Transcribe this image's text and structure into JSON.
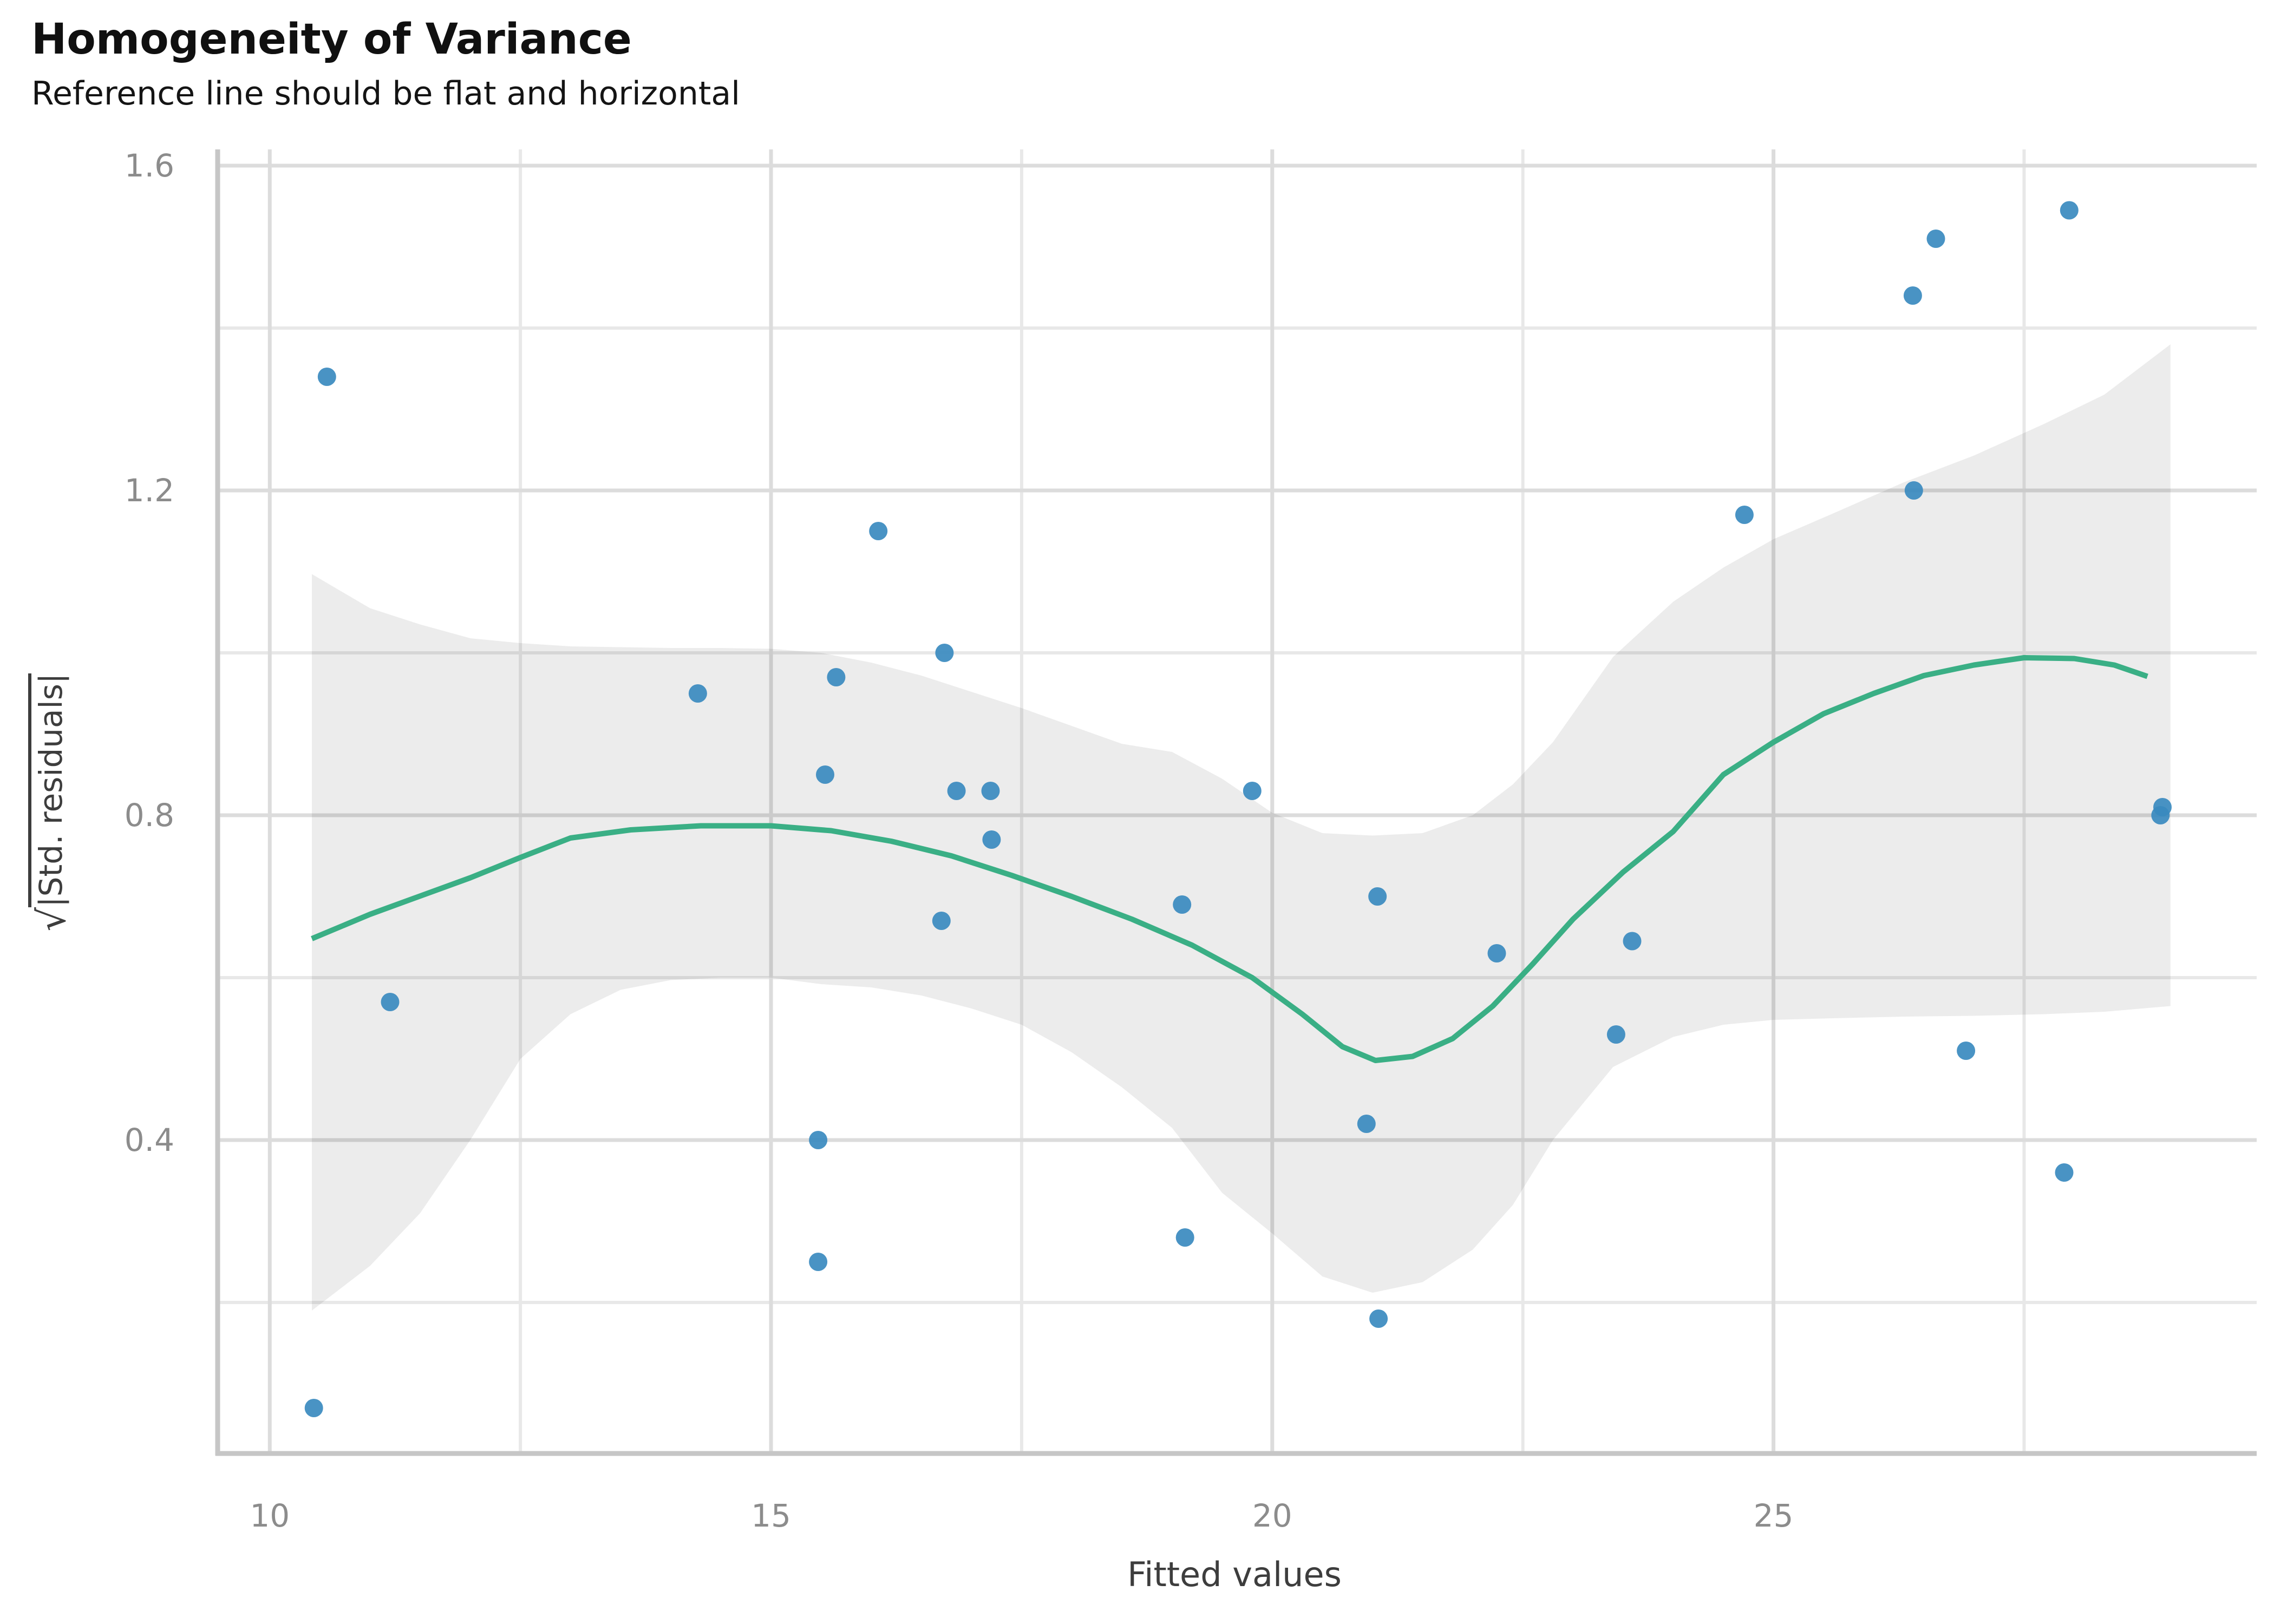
{
  "title": "Homogeneity of Variance",
  "subtitle": "Reference line should be flat and horizontal",
  "x_axis": {
    "label": "Fitted values",
    "ticks": [
      10,
      15,
      20,
      25
    ],
    "minor_ticks": [
      12.5,
      17.5,
      22.5,
      27.5
    ],
    "range": [
      9.48,
      29.82
    ]
  },
  "y_axis": {
    "radical": "√",
    "label_under_radical": "|Std. residuals|",
    "ticks": [
      1.6,
      1.2,
      0.8,
      0.4
    ],
    "minor_ticks": [
      1.4,
      1.0,
      0.6,
      0.2
    ],
    "range": [
      0.014,
      1.62
    ]
  },
  "colors": {
    "point": "#3a8abf",
    "smooth_line": "#3aaf85",
    "band_fill_rgba": "rgba(0,0,0,0.075)",
    "grid_major": "#dcdcdc",
    "grid_minor": "#e8e8e8",
    "axis_line": "#c6c6c6",
    "tick_label": "#8c8c8c",
    "title_text": "#101010"
  },
  "chart_data": {
    "type": "scatter",
    "title": "Homogeneity of Variance",
    "subtitle": "Reference line should be flat and horizontal",
    "xlabel": "Fitted values",
    "ylabel": "sqrt(|Std. residuals|)",
    "xlim": [
      9.48,
      29.82
    ],
    "ylim": [
      0.014,
      1.62
    ],
    "grid": true,
    "points": [
      [
        10.44,
        0.07
      ],
      [
        10.57,
        1.34
      ],
      [
        11.2,
        0.57
      ],
      [
        14.27,
        0.95
      ],
      [
        15.47,
        0.4
      ],
      [
        15.47,
        0.25
      ],
      [
        15.54,
        0.85
      ],
      [
        15.65,
        0.97
      ],
      [
        16.07,
        1.15
      ],
      [
        16.7,
        0.67
      ],
      [
        16.73,
        1.0
      ],
      [
        16.85,
        0.83
      ],
      [
        17.19,
        0.83
      ],
      [
        17.2,
        0.77
      ],
      [
        19.1,
        0.69
      ],
      [
        19.13,
        0.28
      ],
      [
        19.8,
        0.83
      ],
      [
        20.94,
        0.42
      ],
      [
        21.05,
        0.7
      ],
      [
        21.06,
        0.18
      ],
      [
        22.24,
        0.63
      ],
      [
        23.43,
        0.53
      ],
      [
        23.59,
        0.645
      ],
      [
        24.71,
        1.17
      ],
      [
        26.39,
        1.44
      ],
      [
        26.4,
        1.2
      ],
      [
        26.62,
        1.51
      ],
      [
        26.92,
        0.51
      ],
      [
        27.9,
        0.36
      ],
      [
        27.95,
        1.545
      ],
      [
        28.86,
        0.8
      ],
      [
        28.88,
        0.81
      ]
    ],
    "smooth_line": [
      [
        10.42,
        0.648
      ],
      [
        11.0,
        0.678
      ],
      [
        12.0,
        0.723
      ],
      [
        12.5,
        0.748
      ],
      [
        13.0,
        0.772
      ],
      [
        13.6,
        0.782
      ],
      [
        14.3,
        0.787
      ],
      [
        15.0,
        0.787
      ],
      [
        15.6,
        0.781
      ],
      [
        16.2,
        0.768
      ],
      [
        16.8,
        0.75
      ],
      [
        17.4,
        0.726
      ],
      [
        18.0,
        0.7
      ],
      [
        18.6,
        0.672
      ],
      [
        19.2,
        0.64
      ],
      [
        19.8,
        0.6
      ],
      [
        20.3,
        0.555
      ],
      [
        20.7,
        0.515
      ],
      [
        21.03,
        0.498
      ],
      [
        21.4,
        0.503
      ],
      [
        21.8,
        0.525
      ],
      [
        22.2,
        0.565
      ],
      [
        22.6,
        0.617
      ],
      [
        23.0,
        0.672
      ],
      [
        23.5,
        0.73
      ],
      [
        24.0,
        0.78
      ],
      [
        24.5,
        0.85
      ],
      [
        25.0,
        0.89
      ],
      [
        25.5,
        0.925
      ],
      [
        26.0,
        0.95
      ],
      [
        26.5,
        0.972
      ],
      [
        27.0,
        0.985
      ],
      [
        27.5,
        0.994
      ],
      [
        28.0,
        0.993
      ],
      [
        28.4,
        0.985
      ],
      [
        28.73,
        0.971
      ]
    ],
    "confidence_band": [
      [
        10.42,
        0.19,
        1.097
      ],
      [
        11.0,
        0.245,
        1.055
      ],
      [
        11.5,
        0.31,
        1.035
      ],
      [
        12.0,
        0.4,
        1.018
      ],
      [
        12.5,
        0.5,
        1.012
      ],
      [
        13.0,
        0.555,
        1.008
      ],
      [
        13.5,
        0.585,
        1.007
      ],
      [
        14.0,
        0.597,
        1.006
      ],
      [
        14.5,
        0.6,
        1.006
      ],
      [
        15.0,
        0.6,
        1.005
      ],
      [
        15.5,
        0.592,
        1.0
      ],
      [
        16.0,
        0.588,
        0.988
      ],
      [
        16.5,
        0.578,
        0.972
      ],
      [
        17.0,
        0.562,
        0.952
      ],
      [
        17.5,
        0.542,
        0.932
      ],
      [
        18.0,
        0.508,
        0.91
      ],
      [
        18.5,
        0.465,
        0.888
      ],
      [
        19.0,
        0.415,
        0.878
      ],
      [
        19.5,
        0.335,
        0.845
      ],
      [
        20.0,
        0.285,
        0.803
      ],
      [
        20.5,
        0.232,
        0.778
      ],
      [
        21.0,
        0.212,
        0.775
      ],
      [
        21.5,
        0.225,
        0.778
      ],
      [
        22.0,
        0.265,
        0.8
      ],
      [
        22.4,
        0.32,
        0.838
      ],
      [
        22.8,
        0.4,
        0.89
      ],
      [
        23.4,
        0.49,
        0.995
      ],
      [
        24.0,
        0.527,
        1.063
      ],
      [
        24.5,
        0.542,
        1.105
      ],
      [
        25.0,
        0.548,
        1.14
      ],
      [
        25.6,
        0.55,
        1.172
      ],
      [
        26.3,
        0.552,
        1.21
      ],
      [
        27.0,
        0.553,
        1.243
      ],
      [
        27.7,
        0.555,
        1.282
      ],
      [
        28.3,
        0.558,
        1.318
      ],
      [
        28.96,
        0.565,
        1.38
      ]
    ]
  }
}
